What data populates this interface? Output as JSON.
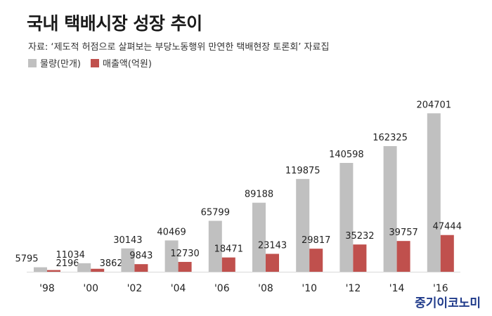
{
  "header": {
    "title": "국내 택배시장 성장 추이",
    "source": "자료: ‘제도적 허점으로 살펴보는 부당노동행위 만연한 택배현장 토론회’  자료집"
  },
  "brand": "중기이코노미",
  "colors": {
    "volume": "#c0c0c0",
    "sales": "#c0504d",
    "brand": "#1f3a8a"
  },
  "chart_data": {
    "type": "bar",
    "title": "국내 택배시장 성장 추이",
    "categories": [
      "'98",
      "'00",
      "'02",
      "'04",
      "'06",
      "'08",
      "'10",
      "'12",
      "'14",
      "'16"
    ],
    "series": [
      {
        "name": "물량(만개)",
        "values": [
          5795,
          11034,
          30143,
          40469,
          65799,
          89188,
          119875,
          140598,
          162325,
          204701
        ]
      },
      {
        "name": "매출액(억원)",
        "values": [
          2196,
          3862,
          9843,
          12730,
          18471,
          23143,
          29817,
          35232,
          39757,
          47444
        ]
      }
    ],
    "ylim": [
      0,
      215000
    ],
    "grid": false,
    "legend_position": "top-left"
  }
}
